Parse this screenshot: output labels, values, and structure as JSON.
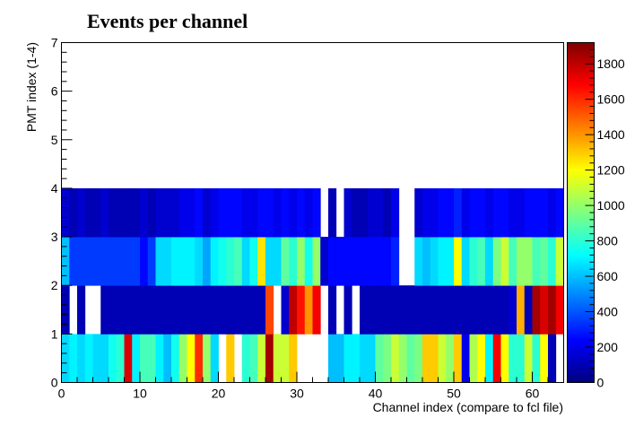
{
  "chart_data": {
    "type": "heatmap",
    "title": "Events per channel",
    "xlabel": "Channel index (compare to fcl file)",
    "ylabel": "PMT index (1-4)",
    "xlim": [
      0,
      64
    ],
    "ylim": [
      0,
      7
    ],
    "zlim": [
      0,
      1920
    ],
    "x_ticks": [
      0,
      10,
      20,
      30,
      40,
      50,
      60
    ],
    "y_ticks": [
      0,
      1,
      2,
      3,
      4,
      5,
      6,
      7
    ],
    "colorbar_ticks": [
      0,
      200,
      400,
      600,
      800,
      1000,
      1200,
      1400,
      1600,
      1800
    ],
    "colorbar_tick_labels": [
      "0",
      "200",
      "400",
      "600",
      "800",
      "1000",
      "1200",
      "1400",
      "1600",
      "1800"
    ],
    "colormap": [
      "#00007f",
      "#0000ff",
      "#007fff",
      "#00ffff",
      "#7fff7f",
      "#ffff00",
      "#ff7f00",
      "#ff0000",
      "#7f0000"
    ],
    "grid": false,
    "x_bins": 64,
    "rows": [
      {
        "y_range": [
          0,
          1
        ],
        "values": [
          650,
          700,
          650,
          700,
          650,
          650,
          750,
          800,
          1750,
          700,
          850,
          850,
          700,
          600,
          750,
          1000,
          1200,
          1600,
          1000,
          650,
          0,
          1300,
          0,
          800,
          850,
          1100,
          1850,
          1100,
          1100,
          1300,
          0,
          0,
          0,
          0,
          600,
          600,
          700,
          700,
          650,
          650,
          900,
          950,
          1100,
          1000,
          900,
          950,
          1300,
          1300,
          1100,
          1000,
          1300,
          200,
          1050,
          1200,
          700,
          1700,
          1200,
          800,
          800,
          1100,
          800,
          1200,
          100,
          0
        ]
      },
      {
        "y_range": [
          1,
          2
        ],
        "values": [
          100,
          0,
          100,
          0,
          0,
          100,
          100,
          100,
          100,
          100,
          100,
          100,
          100,
          100,
          100,
          100,
          100,
          100,
          100,
          100,
          100,
          100,
          100,
          100,
          100,
          100,
          1550,
          0,
          150,
          1800,
          1650,
          1400,
          1700,
          0,
          100,
          0,
          100,
          0,
          100,
          100,
          100,
          100,
          100,
          100,
          100,
          100,
          100,
          100,
          100,
          100,
          100,
          100,
          100,
          100,
          100,
          100,
          100,
          150,
          1350,
          100,
          1850,
          1750,
          1850,
          1700
        ]
      },
      {
        "y_range": [
          2,
          3
        ],
        "values": [
          600,
          350,
          350,
          350,
          350,
          350,
          350,
          350,
          350,
          350,
          250,
          350,
          650,
          650,
          700,
          700,
          700,
          650,
          550,
          700,
          750,
          800,
          850,
          650,
          750,
          1250,
          650,
          650,
          900,
          800,
          1000,
          750,
          1000,
          150,
          250,
          250,
          250,
          250,
          250,
          250,
          250,
          250,
          300,
          0,
          0,
          650,
          600,
          650,
          700,
          700,
          1200,
          650,
          800,
          850,
          650,
          950,
          1100,
          850,
          1000,
          1000,
          850,
          900,
          800,
          1100
        ]
      },
      {
        "y_range": [
          3,
          4
        ],
        "values": [
          150,
          100,
          150,
          100,
          100,
          150,
          100,
          100,
          100,
          100,
          150,
          100,
          150,
          150,
          150,
          200,
          200,
          250,
          150,
          200,
          250,
          250,
          250,
          200,
          200,
          250,
          250,
          200,
          250,
          200,
          250,
          200,
          250,
          0,
          100,
          0,
          150,
          100,
          100,
          150,
          150,
          100,
          200,
          0,
          0,
          150,
          200,
          200,
          250,
          250,
          300,
          200,
          250,
          250,
          200,
          250,
          250,
          200,
          200,
          250,
          250,
          250,
          200,
          250
        ]
      }
    ]
  }
}
